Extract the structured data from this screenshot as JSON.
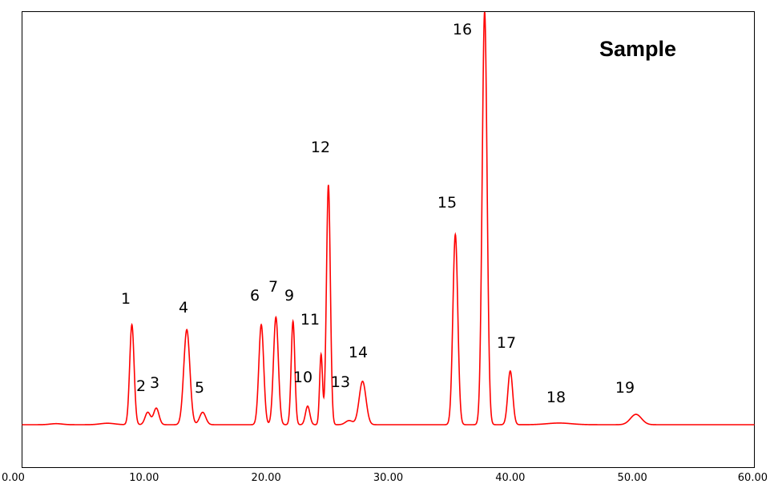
{
  "chart_data": {
    "type": "line",
    "title": "Sample",
    "xlabel": "",
    "ylabel": "",
    "xlim": [
      0,
      60
    ],
    "ylim": [
      0,
      100
    ],
    "grid": false,
    "line_color": "#ff0000",
    "x_ticks": [
      {
        "value": 0,
        "label": "0.00"
      },
      {
        "value": 10,
        "label": "10.00"
      },
      {
        "value": 20,
        "label": "20.00"
      },
      {
        "value": 30,
        "label": "30.00"
      },
      {
        "value": 40,
        "label": "40.00"
      },
      {
        "value": 50,
        "label": "50.00"
      },
      {
        "value": 60,
        "label": "60.00"
      }
    ],
    "baseline": 0,
    "peaks": [
      {
        "label": "1",
        "x": 9.0,
        "height": 24.2,
        "width": 0.18
      },
      {
        "label": "2",
        "x": 10.3,
        "height": 3.0,
        "width": 0.22
      },
      {
        "label": "3",
        "x": 11.0,
        "height": 4.0,
        "width": 0.22
      },
      {
        "label": "4",
        "x": 13.5,
        "height": 23.0,
        "width": 0.25
      },
      {
        "label": "5",
        "x": 14.8,
        "height": 3.0,
        "width": 0.25
      },
      {
        "label": "6",
        "x": 19.6,
        "height": 24.2,
        "width": 0.2
      },
      {
        "label": "7",
        "x": 20.8,
        "height": 26.0,
        "width": 0.2
      },
      {
        "label": "9",
        "x": 22.2,
        "height": 25.0,
        "width": 0.15
      },
      {
        "label": "10",
        "x": 23.4,
        "height": 4.5,
        "width": 0.18
      },
      {
        "label": "11",
        "x": 24.5,
        "height": 17.0,
        "width": 0.12
      },
      {
        "label": "12",
        "x": 25.1,
        "height": 58.0,
        "width": 0.16
      },
      {
        "label": "13",
        "x": 26.8,
        "height": 1.0,
        "width": 0.3
      },
      {
        "label": "14",
        "x": 27.9,
        "height": 10.5,
        "width": 0.28
      },
      {
        "label": "15",
        "x": 35.5,
        "height": 46.0,
        "width": 0.2
      },
      {
        "label": "16",
        "x": 37.9,
        "height": 100,
        "width": 0.2
      },
      {
        "label": "17",
        "x": 40.0,
        "height": 13.0,
        "width": 0.2
      },
      {
        "label": "18",
        "x": 44.0,
        "height": 0.4,
        "width": 1.0
      },
      {
        "label": "19",
        "x": 50.3,
        "height": 2.5,
        "width": 0.45
      }
    ]
  }
}
